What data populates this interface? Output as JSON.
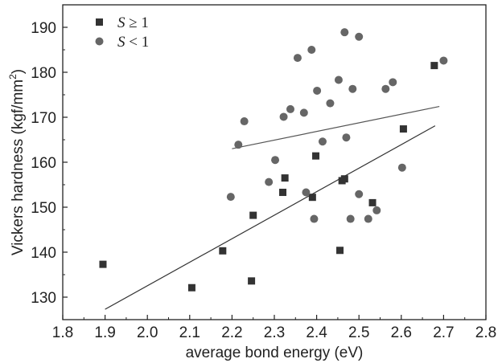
{
  "chart_data": {
    "type": "scatter",
    "title": "",
    "xlabel": "average bond energy (eV)",
    "ylabel_main": "Vickers hardness (kgf/mm",
    "ylabel_sup": "2",
    "ylabel_close": ")",
    "xlim": [
      1.8,
      2.8
    ],
    "ylim": [
      125,
      195
    ],
    "xticks": [
      "1.8",
      "1.9",
      "2.0",
      "2.1",
      "2.2",
      "2.3",
      "2.4",
      "2.5",
      "2.6",
      "2.7",
      "2.8"
    ],
    "yticks": [
      "130",
      "140",
      "150",
      "160",
      "170",
      "180",
      "190"
    ],
    "legend_position": "top-left",
    "series": [
      {
        "name_var": "S",
        "name_rest": " ≥ 1",
        "marker": "square",
        "color": "#333333",
        "points": [
          [
            1.895,
            137.3
          ],
          [
            2.105,
            132.1
          ],
          [
            2.178,
            140.3
          ],
          [
            2.246,
            133.6
          ],
          [
            2.25,
            148.2
          ],
          [
            2.32,
            153.3
          ],
          [
            2.325,
            156.5
          ],
          [
            2.39,
            152.2
          ],
          [
            2.398,
            161.4
          ],
          [
            2.455,
            140.4
          ],
          [
            2.46,
            155.9
          ],
          [
            2.466,
            156.3
          ],
          [
            2.532,
            151.0
          ],
          [
            2.605,
            167.4
          ],
          [
            2.678,
            181.5
          ]
        ],
        "fit": [
          [
            1.9,
            127.3
          ],
          [
            2.68,
            168.1
          ]
        ]
      },
      {
        "name_var": "S",
        "name_rest": " < 1",
        "marker": "circle",
        "color": "#666666",
        "points": [
          [
            2.197,
            152.3
          ],
          [
            2.215,
            163.9
          ],
          [
            2.229,
            169.1
          ],
          [
            2.287,
            155.6
          ],
          [
            2.302,
            160.5
          ],
          [
            2.322,
            170.1
          ],
          [
            2.338,
            171.8
          ],
          [
            2.355,
            183.2
          ],
          [
            2.37,
            171.0
          ],
          [
            2.375,
            153.3
          ],
          [
            2.388,
            185.0
          ],
          [
            2.394,
            147.4
          ],
          [
            2.401,
            175.9
          ],
          [
            2.414,
            164.6
          ],
          [
            2.432,
            173.1
          ],
          [
            2.452,
            178.3
          ],
          [
            2.466,
            188.9
          ],
          [
            2.47,
            165.5
          ],
          [
            2.48,
            147.4
          ],
          [
            2.485,
            176.3
          ],
          [
            2.5,
            152.9
          ],
          [
            2.5,
            187.9
          ],
          [
            2.522,
            147.4
          ],
          [
            2.542,
            149.3
          ],
          [
            2.563,
            176.3
          ],
          [
            2.58,
            177.8
          ],
          [
            2.602,
            158.8
          ],
          [
            2.7,
            182.6
          ]
        ],
        "fit": [
          [
            2.2,
            163.0
          ],
          [
            2.69,
            172.4
          ]
        ]
      }
    ]
  }
}
